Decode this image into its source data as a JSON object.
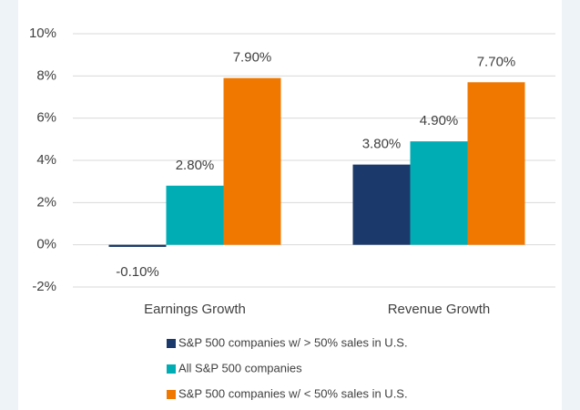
{
  "chart_data": {
    "type": "bar",
    "categories": [
      "Earnings Growth",
      "Revenue Growth"
    ],
    "series": [
      {
        "name": "S&P 500 companies w/ > 50% sales in U.S.",
        "color": "#1b3a6b",
        "values": [
          -0.1,
          3.8
        ],
        "value_labels": [
          "-0.10%",
          "3.80%"
        ]
      },
      {
        "name": "All S&P 500 companies",
        "color": "#00adb5",
        "values": [
          2.8,
          4.9
        ],
        "value_labels": [
          "2.80%",
          "4.90%"
        ]
      },
      {
        "name": "S&P 500 companies w/ < 50% sales in U.S.",
        "color": "#f07800",
        "values": [
          7.9,
          7.7
        ],
        "value_labels": [
          "7.90%",
          "7.70%"
        ]
      }
    ],
    "ylim": [
      -2,
      10
    ],
    "yticks": [
      {
        "value": -2,
        "label": "-2%"
      },
      {
        "value": 0,
        "label": "0%"
      },
      {
        "value": 2,
        "label": "2%"
      },
      {
        "value": 4,
        "label": "4%"
      },
      {
        "value": 6,
        "label": "6%"
      },
      {
        "value": 8,
        "label": "8%"
      },
      {
        "value": 10,
        "label": "10%"
      }
    ],
    "grid": true
  }
}
